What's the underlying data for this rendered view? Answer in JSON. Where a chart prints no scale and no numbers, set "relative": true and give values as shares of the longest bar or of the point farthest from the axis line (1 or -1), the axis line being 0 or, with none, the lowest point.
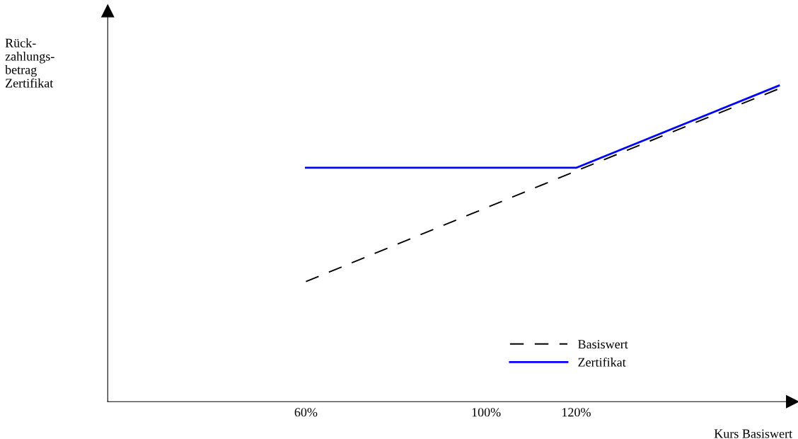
{
  "chart_data": {
    "type": "line",
    "relative": true,
    "xlabel": "Kurs Basiswert",
    "ylabel": "Rück-\nzahlungs-\nbetrag\nZertifikat",
    "xlim": [
      16,
      168
    ],
    "xticks": [
      {
        "value": 60,
        "label": "60%"
      },
      {
        "value": 100,
        "label": "100%"
      },
      {
        "value": 120,
        "label": "120%"
      }
    ],
    "series": [
      {
        "name": "Basiswert",
        "color": "#000000",
        "line_style": "dashed",
        "x": [
          60,
          120,
          165
        ],
        "values": [
          0.38,
          0.73,
          0.99
        ]
      },
      {
        "name": "Zertifikat",
        "color": "#0000ff",
        "line_style": "solid",
        "x": [
          60,
          120,
          165
        ],
        "values": [
          0.74,
          0.74,
          1
        ]
      }
    ],
    "legend": "bottom right",
    "grid": false,
    "marker": "none"
  }
}
